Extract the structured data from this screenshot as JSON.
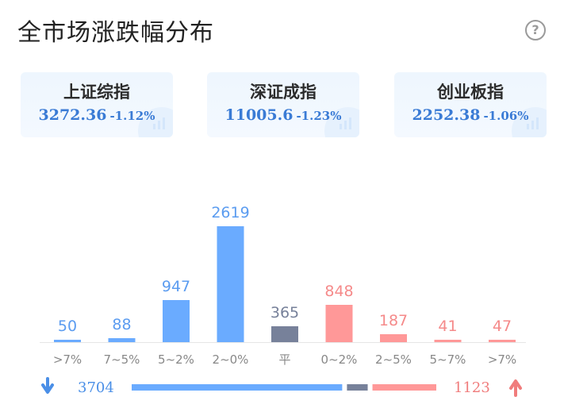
{
  "title": "全市场涨跌幅分布",
  "help_icon": "question-circle-icon",
  "indices": [
    {
      "name": "上证综指",
      "value": "3272.36",
      "change": "-1.12%"
    },
    {
      "name": "深证成指",
      "value": "11005.6",
      "change": "-1.23%"
    },
    {
      "name": "创业板指",
      "value": "2252.38",
      "change": "-1.06%"
    }
  ],
  "colors": {
    "down": "#6aabff",
    "flat": "#77819a",
    "up": "#ff9898",
    "down_text": "#5b9cf0",
    "flat_text": "#77819a",
    "up_text": "#f58a8a"
  },
  "chart_data": {
    "type": "bar",
    "categories": [
      ">7%",
      "7~5%",
      "5~2%",
      "2~0%",
      "平",
      "0~2%",
      "2~5%",
      "5~7%",
      ">7%"
    ],
    "values": [
      50,
      88,
      947,
      2619,
      365,
      848,
      187,
      41,
      47
    ],
    "groups": [
      "down",
      "down",
      "down",
      "down",
      "flat",
      "up",
      "up",
      "up",
      "up"
    ],
    "ylim": [
      0,
      2619
    ]
  },
  "summary": {
    "down_total": "3704",
    "up_total": "1123",
    "flat_total": 365,
    "down_icon": "arrow-down-icon",
    "up_icon": "arrow-up-icon"
  }
}
